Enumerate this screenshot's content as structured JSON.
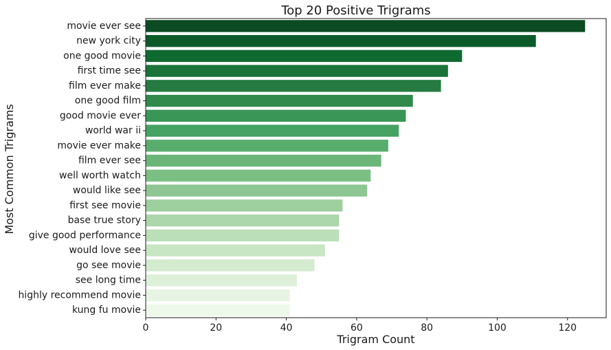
{
  "chart_data": {
    "type": "bar",
    "orientation": "horizontal",
    "title": "Top 20 Positive Trigrams",
    "xlabel": "Trigram Count",
    "ylabel": "Most Common Trigrams",
    "xlim": [
      0,
      131
    ],
    "xticks": [
      0,
      20,
      40,
      60,
      80,
      100,
      120
    ],
    "grid": false,
    "categories": [
      "movie ever see",
      "new york city",
      "one good movie",
      "first time see",
      "film ever make",
      "one good film",
      "good movie ever",
      "world war ii",
      "movie ever make",
      "film ever see",
      "well worth watch",
      "would like see",
      "first see movie",
      "base true story",
      "give good performance",
      "would love see",
      "go see movie",
      "see long time",
      "highly recommend movie",
      "kung fu movie"
    ],
    "values": [
      125,
      111,
      90,
      86,
      84,
      76,
      74,
      72,
      69,
      67,
      64,
      63,
      56,
      55,
      55,
      51,
      48,
      43,
      41,
      41
    ],
    "colors": [
      "#0b4a22",
      "#0c5a2a",
      "#0f6a31",
      "#1a7339",
      "#257b41",
      "#2f8a4b",
      "#3a9656",
      "#46a262",
      "#58ad6d",
      "#6ab679",
      "#7bbf85",
      "#8dc692",
      "#9ecf9e",
      "#acd6ab",
      "#bbdfb8",
      "#c8e5c4",
      "#d4ebd0",
      "#dff0da",
      "#e7f4e3",
      "#eef8ea"
    ]
  }
}
